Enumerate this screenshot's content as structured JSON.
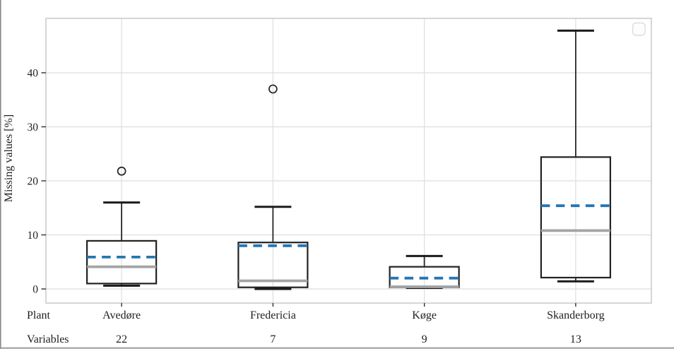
{
  "figure": {
    "background": "#ffffff"
  },
  "chart_data": {
    "type": "boxplot",
    "y_axis_title": "Missing values [%]",
    "ylabel": "Missing values [%]",
    "xlabel": "",
    "y_ticks": [
      0,
      10,
      20,
      30,
      40
    ],
    "ylim": [
      -3,
      50.3
    ],
    "grid": true,
    "legend": {
      "visible": true,
      "position": "upper-right",
      "entries": []
    },
    "row_labels": {
      "plant": "Plant",
      "variables": "Variables"
    },
    "categories": [
      {
        "plant": "Avedøre",
        "variables": "22",
        "whisker_low": 0.6,
        "q1": 1.0,
        "median": 4.1,
        "mean": 5.9,
        "q3": 8.9,
        "whisker_high": 16.0,
        "outliers": [
          21.8
        ]
      },
      {
        "plant": "Fredericia",
        "variables": "7",
        "whisker_low": 0.0,
        "q1": 0.3,
        "median": 1.5,
        "mean": 8.0,
        "q3": 8.6,
        "whisker_high": 15.2,
        "outliers": [
          37.0
        ]
      },
      {
        "plant": "Køge",
        "variables": "9",
        "whisker_low": 0.2,
        "q1": 0.3,
        "median": 0.4,
        "mean": 2.0,
        "q3": 4.1,
        "whisker_high": 6.1,
        "outliers": []
      },
      {
        "plant": "Skanderborg",
        "variables": "13",
        "whisker_low": 1.4,
        "q1": 2.1,
        "median": 10.8,
        "mean": 15.4,
        "q3": 24.4,
        "whisker_high": 47.8,
        "outliers": []
      }
    ],
    "colors": {
      "box_edge": "#222222",
      "whisker": "#262626",
      "cap": "#1b1b1b",
      "median": "#a4a4a4",
      "mean": "#2376b5",
      "grid": "#dedede",
      "spine": "#c4c4c4",
      "text": "#1f1f1f",
      "legend_border": "#dcdcdc",
      "page_edge": "#8c8c8c"
    }
  }
}
